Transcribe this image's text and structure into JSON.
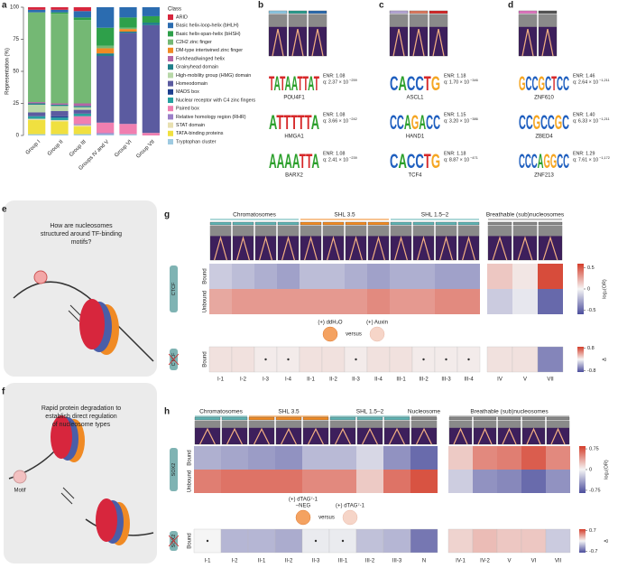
{
  "chart_data": {
    "type": "stacked_bar",
    "letter": "a",
    "ylabel": "Representation (%)",
    "legend_title": "Class",
    "categories": [
      "Group I",
      "Group II",
      "Group III",
      "Groups IV and V",
      "Group VI",
      "Group VII"
    ],
    "ylim": [
      0,
      100
    ],
    "yticks": [
      0,
      25,
      50,
      75,
      100
    ],
    "series": [
      {
        "name": "ARID",
        "color": "#d7263d",
        "values": [
          2,
          2,
          3,
          0,
          0,
          0
        ]
      },
      {
        "name": "Basic helix-loop-helix (bHLH)",
        "color": "#2b6cb0",
        "values": [
          2,
          2,
          5,
          16,
          8,
          7
        ]
      },
      {
        "name": "Basic helix-span-helix (bHSH)",
        "color": "#2ea04a",
        "values": [
          0,
          1,
          2,
          14,
          8,
          5
        ]
      },
      {
        "name": "C2H2 zinc finger",
        "color": "#74b874",
        "values": [
          70,
          70,
          65,
          2,
          1,
          0
        ]
      },
      {
        "name": "DM-type intertwined zinc finger",
        "color": "#f08a24",
        "values": [
          0,
          0,
          0,
          4,
          2,
          0
        ]
      },
      {
        "name": "Forkhead/winged helix",
        "color": "#b565a7",
        "values": [
          1,
          1,
          2,
          0,
          0,
          0
        ]
      },
      {
        "name": "Grainyhead domain",
        "color": "#1f7f8a",
        "values": [
          1,
          1,
          1,
          2,
          1,
          2
        ]
      },
      {
        "name": "High-mobility group (HMG) domain",
        "color": "#b8d8a8",
        "values": [
          6,
          4,
          2,
          0,
          0,
          0
        ]
      },
      {
        "name": "Homeodomain",
        "color": "#5b5ba0",
        "values": [
          3,
          4,
          3,
          52,
          71,
          84
        ]
      },
      {
        "name": "MADS box",
        "color": "#1d3f8f",
        "values": [
          0,
          1,
          0,
          0,
          0,
          0
        ]
      },
      {
        "name": "Nuclear receptor with C4 zinc fingers",
        "color": "#27a0a0",
        "values": [
          2,
          2,
          2,
          0,
          0,
          0
        ]
      },
      {
        "name": "Paired box",
        "color": "#f07fb0",
        "values": [
          0,
          0,
          6,
          8,
          8,
          2
        ]
      },
      {
        "name": "Relative homology region (RHR)",
        "color": "#9b7fc8",
        "values": [
          0,
          0,
          1,
          1,
          0,
          0
        ]
      },
      {
        "name": "STAT domain",
        "color": "#e8e0b0",
        "values": [
          1,
          1,
          1,
          0,
          0,
          0
        ]
      },
      {
        "name": "TATA-binding proteins",
        "color": "#f0e040",
        "values": [
          11,
          10,
          6,
          0,
          0,
          0
        ]
      },
      {
        "name": "Tryptophan cluster",
        "color": "#9ecae1",
        "values": [
          1,
          1,
          1,
          1,
          1,
          0
        ]
      }
    ]
  },
  "motifs": [
    {
      "letter": "b",
      "bar_colors": [
        "#8ecae6",
        "#2a9d8f",
        "#2b6cb0"
      ],
      "logos": [
        {
          "seq": "TATAATTAT",
          "name": "POU4F1",
          "enr": "ENR: 1.08",
          "q": "q: 2.37 × 10",
          "q_exp": "−259"
        },
        {
          "seq": "ATTTTTA",
          "name": "HMGA1",
          "enr": "ENR: 1.08",
          "q": "q: 3.66 × 10",
          "q_exp": "−242"
        },
        {
          "seq": "AAAATTA",
          "name": "BARX2",
          "enr": "ENR: 1.08",
          "q": "q: 2.41 × 10",
          "q_exp": "−239"
        }
      ]
    },
    {
      "letter": "c",
      "bar_colors": [
        "#b8a9d9",
        "#e07a5f",
        "#d62828"
      ],
      "logos": [
        {
          "seq": "CACCTG",
          "name": "ASCL1",
          "enr": "ENR: 1.18",
          "q": "q: 1.70 × 10",
          "q_exp": "−346"
        },
        {
          "seq": "CCAGACC",
          "name": "HAND1",
          "enr": "ENR: 1.15",
          "q": "q: 3.20 × 10",
          "q_exp": "−386"
        },
        {
          "seq": "CACCTG",
          "name": "TCF4",
          "enr": "ENR: 1.18",
          "q": "q: 8.87 × 10",
          "q_exp": "−471"
        }
      ]
    },
    {
      "letter": "d",
      "bar_colors": [
        "#e377c2",
        "#555555"
      ],
      "logos": [
        {
          "seq": "GCCGCTCC",
          "name": "ZNF610",
          "enr": "ENR: 1.46",
          "q": "q: 2.64 × 10",
          "q_exp": "−1,211"
        },
        {
          "seq": "CCGCCGC",
          "name": "ZBED4",
          "enr": "ENR: 1.40",
          "q": "q: 6.33 × 10",
          "q_exp": "−1,211"
        },
        {
          "seq": "CCCAGGCC",
          "name": "ZNF213",
          "enr": "ENR: 1.29",
          "q": "q: 7.61 × 10",
          "q_exp": "−1,172"
        }
      ]
    }
  ],
  "panel_e": {
    "letter": "e",
    "lines": [
      "How are nucleosomes",
      "structured around TF-binding",
      "motifs?"
    ]
  },
  "panel_f": {
    "letter": "f",
    "lines": [
      "Rapid protein degradation to",
      "establish direct regulation",
      "of nucleosome types"
    ],
    "motif": "Motif"
  },
  "panel_g": {
    "letter": "g",
    "protein": "CTCF",
    "rows": [
      "Bound",
      "Unbound"
    ],
    "delta_row": "Bound",
    "treatments": [
      [
        "(+) ddH₂O"
      ],
      [
        "(+) Auxin"
      ]
    ],
    "versus": "versus",
    "colormap": [
      "#4b4d9c",
      "#f5f5f5",
      "#d43d2a"
    ],
    "log2or_label": "log₂(OR)",
    "log2or_lim": [
      -0.6,
      0.6
    ],
    "log2or_ticks": [
      0.5,
      0,
      -0.5
    ],
    "delta_label": "Δ",
    "delta_lim": [
      -0.9,
      0.9
    ],
    "delta_ticks": [
      0.8,
      -0.8
    ],
    "left": {
      "headers": [
        {
          "label": "Chromatosomes",
          "color": "#5fb3b3",
          "columns": [
            "I-1",
            "I-2",
            "I-3",
            "I-4"
          ]
        },
        {
          "label": "SHL 3.5",
          "color": "#f08a24",
          "columns": [
            "II-1",
            "II-2",
            "II-3",
            "II-4"
          ]
        },
        {
          "label": "SHL 1.5–2",
          "color": "#5fb3b3",
          "columns": [
            "III-1",
            "III-2",
            "III-3",
            "III-4"
          ]
        }
      ],
      "log2or": [
        [
          -0.15,
          -0.2,
          -0.25,
          -0.3,
          -0.2,
          -0.2,
          -0.25,
          -0.3,
          -0.25,
          -0.25,
          -0.3,
          -0.3
        ],
        [
          0.25,
          0.3,
          0.3,
          0.3,
          0.3,
          0.3,
          0.3,
          0.35,
          0.3,
          0.3,
          0.35,
          0.35
        ]
      ],
      "delta": [
        0.1,
        0.1,
        0.05,
        0.05,
        0.1,
        0.1,
        0.05,
        0.1,
        0.1,
        0.05,
        0.05,
        0.05
      ],
      "significant": [
        false,
        false,
        true,
        true,
        false,
        false,
        true,
        false,
        false,
        true,
        true,
        true
      ]
    },
    "right": {
      "headers": [
        {
          "label": "Breathable (sub)nucleosomes",
          "color": "#888888",
          "columns": [
            "IV",
            "V",
            "VII"
          ]
        }
      ],
      "log2or": [
        [
          0.15,
          0.05,
          0.55
        ],
        [
          -0.15,
          -0.05,
          -0.5
        ]
      ],
      "delta": [
        0.1,
        0.1,
        -0.6
      ],
      "significant": [
        false,
        false,
        false
      ]
    }
  },
  "panel_h": {
    "letter": "h",
    "protein": "SOX2",
    "rows": [
      "Bound",
      "Unbound"
    ],
    "delta_row": "Bound",
    "treatments": [
      [
        "(+) dTAG⁷-1",
        "–NEG"
      ],
      [
        "(+) dTAG⁷-1"
      ]
    ],
    "versus": "versus",
    "colormap": [
      "#4b4d9c",
      "#f5f5f5",
      "#d43d2a"
    ],
    "log2or_label": "log₂(OR)",
    "log2or_lim": [
      -0.85,
      0.85
    ],
    "log2or_ticks": [
      0.75,
      0,
      -0.75
    ],
    "delta_label": "Δ",
    "delta_lim": [
      -0.8,
      0.8
    ],
    "delta_ticks": [
      0.7,
      -0.7
    ],
    "left": {
      "headers": [
        {
          "label": "Chromatosomes",
          "color": "#5fb3b3",
          "columns": [
            "I-1",
            "I-2"
          ]
        },
        {
          "label": "SHL 3.5",
          "color": "#f08a24",
          "columns": [
            "II-1",
            "II-2",
            "II-3"
          ]
        },
        {
          "label": "SHL 1.5–2",
          "color": "#5fb3b3",
          "columns": [
            "III-1",
            "III-2",
            "III-3"
          ]
        },
        {
          "label": "Nucleosome",
          "color": "#888888",
          "columns": [
            "N"
          ]
        }
      ],
      "log2or": [
        [
          -0.35,
          -0.4,
          -0.45,
          -0.5,
          -0.3,
          -0.3,
          -0.15,
          -0.5,
          -0.7
        ],
        [
          0.55,
          0.6,
          0.6,
          0.6,
          0.5,
          0.5,
          0.2,
          0.6,
          0.75
        ]
      ],
      "delta": [
        0,
        -0.3,
        -0.3,
        -0.35,
        -0.05,
        -0.05,
        -0.25,
        -0.3,
        -0.6
      ],
      "significant": [
        true,
        false,
        false,
        false,
        true,
        true,
        false,
        false,
        false
      ]
    },
    "right": {
      "headers": [
        {
          "label": "Breathable (sub)nucleosomes",
          "color": "#888888",
          "columns": [
            "IV-1",
            "IV-2",
            "V",
            "VI",
            "VII"
          ]
        }
      ],
      "log2or": [
        [
          0.2,
          0.5,
          0.55,
          0.7,
          0.5
        ],
        [
          -0.2,
          -0.5,
          -0.55,
          -0.7,
          -0.5
        ]
      ],
      "delta": [
        0.15,
        0.25,
        0.2,
        0.2,
        -0.2
      ],
      "significant": [
        false,
        false,
        false,
        false,
        false
      ]
    }
  }
}
